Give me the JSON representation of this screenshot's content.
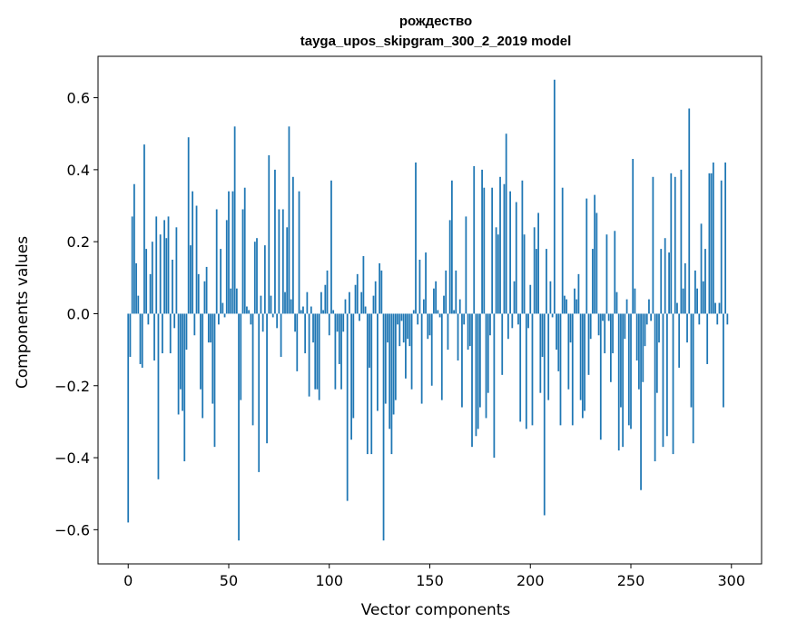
{
  "chart_data": {
    "type": "bar",
    "title_line1": "рождество",
    "title_line2": "tayga_upos_skipgram_300_2_2019 model",
    "xlabel": "Vector components",
    "ylabel": "Components values",
    "xlim": [
      -15,
      315
    ],
    "ylim": [
      -0.695,
      0.715
    ],
    "xticks": [
      0,
      50,
      100,
      150,
      200,
      250,
      300
    ],
    "xtick_labels": [
      "0",
      "50",
      "100",
      "150",
      "200",
      "250",
      "300"
    ],
    "yticks": [
      -0.6,
      -0.4,
      -0.2,
      0.0,
      0.2,
      0.4,
      0.6
    ],
    "ytick_labels": [
      "−0.6",
      "−0.4",
      "−0.2",
      "0.0",
      "0.2",
      "0.4",
      "0.6"
    ],
    "bar_color": "#1f77b4",
    "bar_width": 0.8,
    "values": [
      -0.58,
      -0.12,
      0.27,
      0.36,
      0.14,
      0.05,
      -0.14,
      -0.15,
      0.47,
      0.18,
      -0.03,
      0.11,
      0.2,
      -0.13,
      0.27,
      -0.46,
      0.22,
      -0.11,
      0.26,
      0.21,
      0.27,
      -0.11,
      0.15,
      -0.04,
      0.24,
      -0.28,
      -0.21,
      -0.27,
      -0.41,
      -0.1,
      0.49,
      0.19,
      0.34,
      -0.06,
      0.3,
      0.11,
      -0.21,
      -0.29,
      0.09,
      0.13,
      -0.08,
      -0.08,
      -0.25,
      -0.37,
      0.29,
      -0.03,
      0.18,
      0.03,
      -0.01,
      0.26,
      0.34,
      0.07,
      0.34,
      0.52,
      0.07,
      -0.63,
      -0.24,
      0.29,
      0.35,
      0.02,
      0.01,
      -0.03,
      -0.31,
      0.2,
      0.21,
      -0.44,
      0.05,
      -0.05,
      0.19,
      -0.36,
      0.44,
      0.05,
      -0.01,
      0.4,
      -0.04,
      0.29,
      -0.12,
      0.29,
      0.06,
      0.24,
      0.52,
      0.04,
      0.38,
      -0.05,
      -0.16,
      0.34,
      0.01,
      0.02,
      -0.11,
      0.06,
      -0.23,
      0.02,
      -0.08,
      -0.21,
      -0.21,
      -0.24,
      0.06,
      0.01,
      0.08,
      0.12,
      -0.06,
      0.37,
      0.01,
      -0.21,
      -0.05,
      -0.14,
      -0.21,
      -0.05,
      0.04,
      -0.52,
      0.06,
      -0.35,
      -0.29,
      0.08,
      0.11,
      -0.02,
      0.06,
      0.16,
      0.02,
      -0.39,
      -0.15,
      -0.39,
      0.05,
      0.09,
      -0.27,
      0.14,
      0.12,
      -0.63,
      -0.25,
      -0.08,
      -0.32,
      -0.39,
      -0.28,
      -0.24,
      -0.03,
      -0.09,
      -0.02,
      -0.08,
      -0.18,
      -0.07,
      -0.09,
      -0.21,
      0.01,
      0.42,
      -0.03,
      0.15,
      -0.25,
      0.04,
      0.17,
      -0.07,
      -0.06,
      -0.2,
      0.07,
      0.09,
      0.01,
      -0.01,
      -0.24,
      0.05,
      0.12,
      -0.1,
      0.26,
      0.37,
      0.01,
      0.12,
      -0.13,
      0.04,
      -0.26,
      -0.03,
      0.27,
      -0.1,
      -0.09,
      -0.37,
      0.41,
      -0.34,
      -0.32,
      -0.26,
      0.4,
      0.35,
      -0.29,
      -0.22,
      -0.06,
      0.35,
      -0.4,
      0.24,
      0.22,
      0.38,
      -0.17,
      0.36,
      0.5,
      -0.07,
      0.34,
      -0.04,
      0.09,
      0.31,
      -0.03,
      -0.3,
      0.37,
      0.22,
      -0.32,
      -0.04,
      0.08,
      -0.31,
      0.24,
      0.18,
      0.28,
      -0.22,
      -0.12,
      -0.56,
      0.18,
      -0.24,
      0.09,
      -0.01,
      0.65,
      -0.1,
      -0.16,
      -0.31,
      0.35,
      0.05,
      0.04,
      -0.21,
      -0.08,
      -0.31,
      0.07,
      0.04,
      0.11,
      -0.24,
      -0.29,
      -0.27,
      0.32,
      -0.17,
      -0.07,
      0.18,
      0.33,
      0.28,
      -0.06,
      -0.35,
      -0.02,
      -0.11,
      0.22,
      -0.02,
      -0.19,
      -0.11,
      0.23,
      0.06,
      -0.38,
      -0.26,
      -0.37,
      -0.07,
      0.04,
      -0.31,
      -0.32,
      0.43,
      0.07,
      -0.13,
      -0.21,
      -0.49,
      -0.19,
      -0.09,
      -0.03,
      0.04,
      -0.02,
      0.38,
      -0.41,
      -0.22,
      -0.08,
      0.18,
      -0.37,
      0.21,
      -0.34,
      0.17,
      0.39,
      -0.39,
      0.38,
      0.03,
      -0.15,
      0.4,
      0.07,
      0.14,
      -0.08,
      0.57,
      -0.26,
      -0.36,
      0.12,
      0.07,
      -0.03,
      0.25,
      0.09,
      0.18,
      -0.14,
      0.39,
      0.39,
      0.42,
      0.03,
      -0.03,
      0.03,
      0.37,
      -0.26,
      0.42,
      -0.03
    ]
  }
}
